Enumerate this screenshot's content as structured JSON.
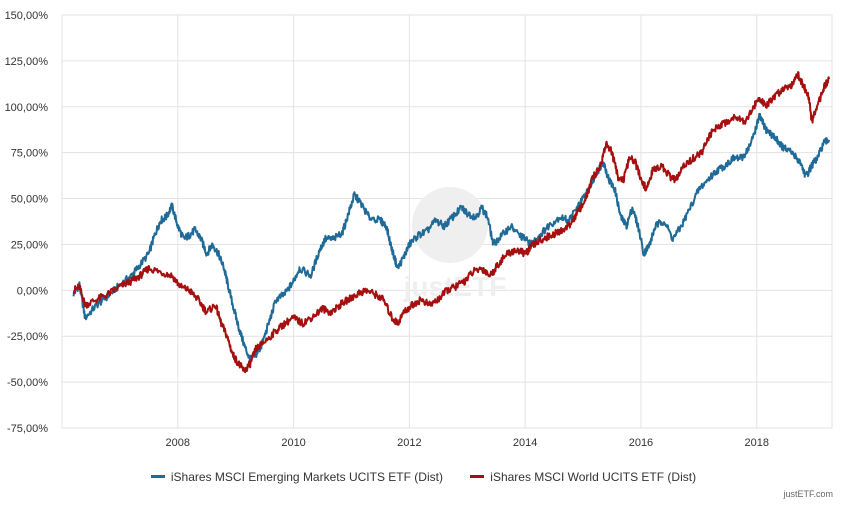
{
  "chart_data": {
    "type": "line",
    "y_ticks": [
      "150,00%",
      "125,00%",
      "100,00%",
      "75,00%",
      "50,00%",
      "25,00%",
      "0,00%",
      "-25,00%",
      "-50,00%",
      "-75,00%"
    ],
    "x_ticks": [
      "2008",
      "2010",
      "2012",
      "2014",
      "2016",
      "2018"
    ],
    "ylim": [
      -75,
      150
    ],
    "xlim": [
      2006.0,
      2019.3
    ],
    "grid": true,
    "legend_position": "bottom-center",
    "series": [
      {
        "name": "iShares MSCI Emerging Markets UCITS ETF (Dist)",
        "color": "#1f6a96",
        "points": [
          [
            2006.2,
            -2
          ],
          [
            2006.3,
            3
          ],
          [
            2006.4,
            -15
          ],
          [
            2006.6,
            -8
          ],
          [
            2006.8,
            -3
          ],
          [
            2007.0,
            3
          ],
          [
            2007.2,
            8
          ],
          [
            2007.3,
            12
          ],
          [
            2007.5,
            20
          ],
          [
            2007.6,
            30
          ],
          [
            2007.7,
            38
          ],
          [
            2007.8,
            40
          ],
          [
            2007.9,
            46
          ],
          [
            2008.0,
            35
          ],
          [
            2008.1,
            28
          ],
          [
            2008.2,
            30
          ],
          [
            2008.3,
            33
          ],
          [
            2008.4,
            28
          ],
          [
            2008.5,
            20
          ],
          [
            2008.6,
            25
          ],
          [
            2008.7,
            20
          ],
          [
            2008.8,
            12
          ],
          [
            2008.85,
            5
          ],
          [
            2008.95,
            -8
          ],
          [
            2009.05,
            -20
          ],
          [
            2009.15,
            -30
          ],
          [
            2009.25,
            -38
          ],
          [
            2009.35,
            -35
          ],
          [
            2009.45,
            -30
          ],
          [
            2009.55,
            -20
          ],
          [
            2009.7,
            -5
          ],
          [
            2009.85,
            -2
          ],
          [
            2010.0,
            5
          ],
          [
            2010.1,
            12
          ],
          [
            2010.3,
            8
          ],
          [
            2010.45,
            22
          ],
          [
            2010.55,
            28
          ],
          [
            2010.7,
            28
          ],
          [
            2010.85,
            32
          ],
          [
            2010.95,
            42
          ],
          [
            2011.05,
            52
          ],
          [
            2011.15,
            48
          ],
          [
            2011.3,
            40
          ],
          [
            2011.5,
            38
          ],
          [
            2011.6,
            35
          ],
          [
            2011.7,
            22
          ],
          [
            2011.8,
            12
          ],
          [
            2011.9,
            18
          ],
          [
            2012.0,
            25
          ],
          [
            2012.15,
            30
          ],
          [
            2012.3,
            32
          ],
          [
            2012.45,
            38
          ],
          [
            2012.6,
            35
          ],
          [
            2012.75,
            40
          ],
          [
            2012.9,
            45
          ],
          [
            2013.0,
            42
          ],
          [
            2013.15,
            40
          ],
          [
            2013.25,
            45
          ],
          [
            2013.35,
            40
          ],
          [
            2013.45,
            25
          ],
          [
            2013.6,
            30
          ],
          [
            2013.75,
            35
          ],
          [
            2013.9,
            30
          ],
          [
            2014.0,
            28
          ],
          [
            2014.1,
            25
          ],
          [
            2014.25,
            30
          ],
          [
            2014.4,
            35
          ],
          [
            2014.6,
            40
          ],
          [
            2014.75,
            38
          ],
          [
            2014.9,
            45
          ],
          [
            2015.0,
            50
          ],
          [
            2015.1,
            55
          ],
          [
            2015.25,
            65
          ],
          [
            2015.35,
            70
          ],
          [
            2015.45,
            60
          ],
          [
            2015.55,
            55
          ],
          [
            2015.65,
            40
          ],
          [
            2015.75,
            35
          ],
          [
            2015.85,
            45
          ],
          [
            2015.95,
            35
          ],
          [
            2016.05,
            20
          ],
          [
            2016.15,
            25
          ],
          [
            2016.25,
            35
          ],
          [
            2016.4,
            38
          ],
          [
            2016.55,
            28
          ],
          [
            2016.7,
            35
          ],
          [
            2016.85,
            45
          ],
          [
            2017.0,
            55
          ],
          [
            2017.15,
            60
          ],
          [
            2017.3,
            65
          ],
          [
            2017.45,
            68
          ],
          [
            2017.6,
            72
          ],
          [
            2017.75,
            72
          ],
          [
            2017.9,
            80
          ],
          [
            2018.0,
            90
          ],
          [
            2018.05,
            95
          ],
          [
            2018.15,
            88
          ],
          [
            2018.25,
            85
          ],
          [
            2018.35,
            82
          ],
          [
            2018.45,
            78
          ],
          [
            2018.6,
            75
          ],
          [
            2018.75,
            70
          ],
          [
            2018.85,
            62
          ],
          [
            2018.95,
            68
          ],
          [
            2019.05,
            72
          ],
          [
            2019.15,
            80
          ],
          [
            2019.25,
            82
          ]
        ]
      },
      {
        "name": "iShares MSCI World UCITS ETF (Dist)",
        "color": "#a50f0f",
        "points": [
          [
            2006.2,
            0
          ],
          [
            2006.3,
            2
          ],
          [
            2006.4,
            -8
          ],
          [
            2006.6,
            -5
          ],
          [
            2006.8,
            -2
          ],
          [
            2007.0,
            2
          ],
          [
            2007.2,
            5
          ],
          [
            2007.35,
            8
          ],
          [
            2007.5,
            12
          ],
          [
            2007.7,
            10
          ],
          [
            2007.9,
            8
          ],
          [
            2008.05,
            2
          ],
          [
            2008.2,
            0
          ],
          [
            2008.35,
            -5
          ],
          [
            2008.5,
            -12
          ],
          [
            2008.65,
            -8
          ],
          [
            2008.75,
            -18
          ],
          [
            2008.85,
            -25
          ],
          [
            2008.95,
            -35
          ],
          [
            2009.05,
            -40
          ],
          [
            2009.15,
            -44
          ],
          [
            2009.25,
            -40
          ],
          [
            2009.35,
            -32
          ],
          [
            2009.5,
            -28
          ],
          [
            2009.7,
            -22
          ],
          [
            2009.85,
            -18
          ],
          [
            2010.0,
            -15
          ],
          [
            2010.15,
            -18
          ],
          [
            2010.3,
            -15
          ],
          [
            2010.5,
            -10
          ],
          [
            2010.65,
            -12
          ],
          [
            2010.8,
            -8
          ],
          [
            2010.95,
            -5
          ],
          [
            2011.1,
            -2
          ],
          [
            2011.25,
            0
          ],
          [
            2011.4,
            -2
          ],
          [
            2011.55,
            -5
          ],
          [
            2011.7,
            -15
          ],
          [
            2011.8,
            -18
          ],
          [
            2011.9,
            -12
          ],
          [
            2012.05,
            -8
          ],
          [
            2012.2,
            -5
          ],
          [
            2012.35,
            -8
          ],
          [
            2012.5,
            -5
          ],
          [
            2012.65,
            0
          ],
          [
            2012.8,
            2
          ],
          [
            2012.95,
            5
          ],
          [
            2013.1,
            10
          ],
          [
            2013.25,
            12
          ],
          [
            2013.4,
            8
          ],
          [
            2013.55,
            15
          ],
          [
            2013.7,
            20
          ],
          [
            2013.85,
            22
          ],
          [
            2014.0,
            20
          ],
          [
            2014.15,
            25
          ],
          [
            2014.3,
            28
          ],
          [
            2014.45,
            30
          ],
          [
            2014.6,
            32
          ],
          [
            2014.75,
            35
          ],
          [
            2014.9,
            42
          ],
          [
            2015.05,
            50
          ],
          [
            2015.15,
            60
          ],
          [
            2015.3,
            68
          ],
          [
            2015.4,
            80
          ],
          [
            2015.5,
            75
          ],
          [
            2015.6,
            62
          ],
          [
            2015.7,
            60
          ],
          [
            2015.8,
            72
          ],
          [
            2015.9,
            70
          ],
          [
            2016.0,
            60
          ],
          [
            2016.1,
            55
          ],
          [
            2016.2,
            65
          ],
          [
            2016.35,
            68
          ],
          [
            2016.5,
            62
          ],
          [
            2016.6,
            60
          ],
          [
            2016.75,
            68
          ],
          [
            2016.9,
            72
          ],
          [
            2017.05,
            75
          ],
          [
            2017.2,
            85
          ],
          [
            2017.35,
            90
          ],
          [
            2017.5,
            92
          ],
          [
            2017.65,
            95
          ],
          [
            2017.8,
            92
          ],
          [
            2017.95,
            100
          ],
          [
            2018.05,
            105
          ],
          [
            2018.15,
            100
          ],
          [
            2018.3,
            105
          ],
          [
            2018.45,
            110
          ],
          [
            2018.6,
            112
          ],
          [
            2018.7,
            118
          ],
          [
            2018.8,
            112
          ],
          [
            2018.9,
            105
          ],
          [
            2018.95,
            92
          ],
          [
            2019.05,
            100
          ],
          [
            2019.15,
            110
          ],
          [
            2019.25,
            115
          ]
        ]
      }
    ]
  },
  "watermark": {
    "text": "justETF",
    "logo_color": "#e6e6e6"
  },
  "credit": "justETF.com"
}
